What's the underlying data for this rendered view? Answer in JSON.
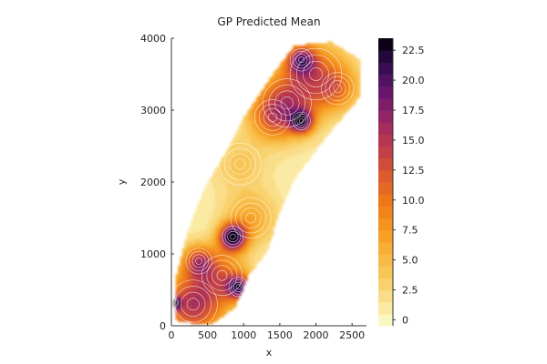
{
  "chart_data": {
    "type": "heatmap",
    "subtype": "filled-contour",
    "title": "GP Predicted Mean",
    "xlabel": "x",
    "ylabel": "y",
    "xlim": [
      0,
      2700
    ],
    "ylim": [
      0,
      4000
    ],
    "x_ticks": [
      0,
      500,
      1000,
      1500,
      2000,
      2500
    ],
    "y_ticks": [
      0,
      1000,
      2000,
      3000,
      4000
    ],
    "grid": false,
    "colorbar": {
      "colormap": "inferno",
      "range": [
        -0.5,
        23.5
      ],
      "ticks": [
        0,
        2.5,
        5.0,
        7.5,
        10.0,
        12.5,
        15.0,
        17.5,
        20.0,
        22.5
      ],
      "tick_labels": [
        "0",
        "2.5",
        "5.0",
        "7.5",
        "10.0",
        "12.5",
        "15.0",
        "17.5",
        "20.0",
        "22.5"
      ],
      "levels": 24
    },
    "region_outline": [
      [
        80,
        60
      ],
      [
        550,
        20
      ],
      [
        880,
        260
      ],
      [
        1060,
        700
      ],
      [
        1330,
        1050
      ],
      [
        1480,
        1550
      ],
      [
        1700,
        2050
      ],
      [
        2150,
        2650
      ],
      [
        2620,
        3200
      ],
      [
        2620,
        3700
      ],
      [
        2200,
        3950
      ],
      [
        1700,
        3900
      ],
      [
        1400,
        3500
      ],
      [
        1000,
        2900
      ],
      [
        750,
        2400
      ],
      [
        450,
        1900
      ],
      [
        220,
        1300
      ],
      [
        70,
        700
      ],
      [
        40,
        300
      ]
    ],
    "features": [
      {
        "x": 300,
        "y": 300,
        "value": 15.0,
        "spread": 300
      },
      {
        "x": 380,
        "y": 900,
        "value": 12.0,
        "spread": 160
      },
      {
        "x": 30,
        "y": 320,
        "value": 22.0,
        "spread": 60
      },
      {
        "x": 850,
        "y": 1240,
        "value": 23.0,
        "spread": 130
      },
      {
        "x": 930,
        "y": 540,
        "value": 17.0,
        "spread": 120
      },
      {
        "x": 700,
        "y": 700,
        "value": 9.0,
        "spread": 250
      },
      {
        "x": 1100,
        "y": 1500,
        "value": 6.5,
        "spread": 250
      },
      {
        "x": 950,
        "y": 2250,
        "value": 4.0,
        "spread": 260
      },
      {
        "x": 1800,
        "y": 2850,
        "value": 18.0,
        "spread": 110
      },
      {
        "x": 1600,
        "y": 3100,
        "value": 11.0,
        "spread": 300
      },
      {
        "x": 2000,
        "y": 3500,
        "value": 10.0,
        "spread": 320
      },
      {
        "x": 1800,
        "y": 3700,
        "value": 14.0,
        "spread": 140
      },
      {
        "x": 1400,
        "y": 2900,
        "value": 8.0,
        "spread": 220
      },
      {
        "x": 2300,
        "y": 3300,
        "value": 7.0,
        "spread": 200
      }
    ]
  }
}
